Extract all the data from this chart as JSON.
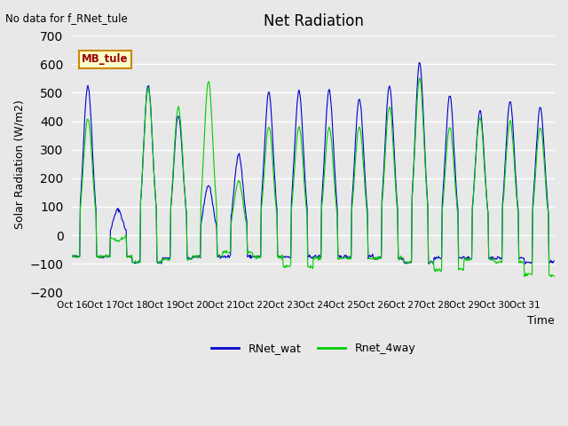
{
  "title": "Net Radiation",
  "ylabel": "Solar Radiation (W/m2)",
  "xlabel": "Time",
  "top_label": "No data for f_RNet_tule",
  "box_label": "MB_tule",
  "ylim": [
    -200,
    700
  ],
  "yticks": [
    -200,
    -100,
    0,
    100,
    200,
    300,
    400,
    500,
    600,
    700
  ],
  "xtick_labels": [
    "Oct 16",
    "Oct 17",
    "Oct 18",
    "Oct 19",
    "Oct 20",
    "Oct 21",
    "Oct 22",
    "Oct 23",
    "Oct 24",
    "Oct 25",
    "Oct 26",
    "Oct 27",
    "Oct 28",
    "Oct 29",
    "Oct 30",
    "Oct 31"
  ],
  "legend_labels": [
    "RNet_wat",
    "Rnet_4way"
  ],
  "line_colors": [
    "#0000cc",
    "#00cc00"
  ],
  "fig_bg_color": "#e8e8e8",
  "plot_bg_color": "#e8e8e8",
  "n_days": 16,
  "pts_per_day": 48,
  "day_peaks_blue": [
    525,
    90,
    525,
    420,
    175,
    285,
    500,
    505,
    510,
    480,
    525,
    605,
    490,
    435,
    470,
    450
  ],
  "day_peaks_green": [
    410,
    -20,
    515,
    450,
    540,
    190,
    380,
    380,
    380,
    380,
    450,
    550,
    380,
    410,
    400,
    380
  ],
  "night_values_blue": [
    -75,
    -75,
    -95,
    -80,
    -75,
    -75,
    -75,
    -75,
    -75,
    -75,
    -80,
    -95,
    -80,
    -80,
    -80,
    -95
  ],
  "night_values_green": [
    -75,
    -75,
    -95,
    -85,
    -75,
    -60,
    -75,
    -110,
    -80,
    -80,
    -80,
    -95,
    -120,
    -85,
    -95,
    -140
  ]
}
